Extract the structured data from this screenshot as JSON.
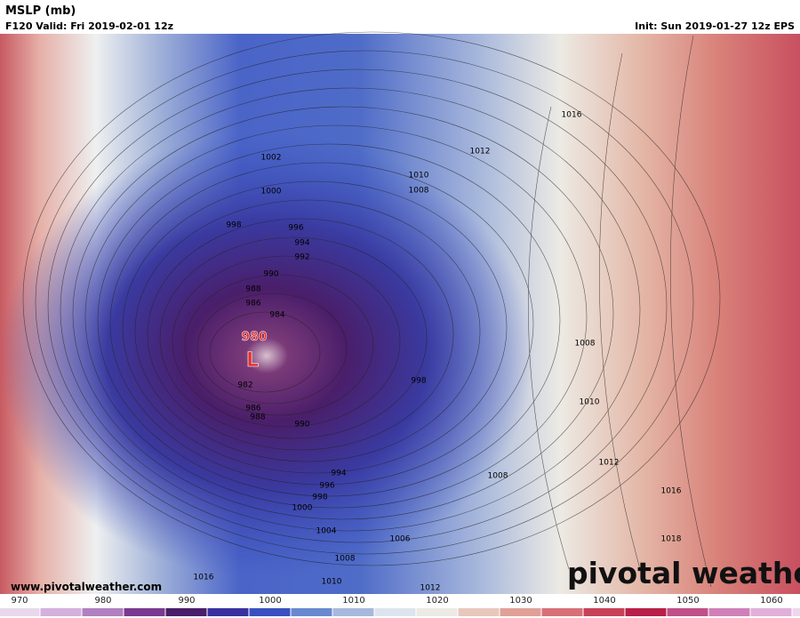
{
  "header": {
    "title": "MSLP (mb)",
    "valid": "F120 Valid: Fri 2019-02-01 12z",
    "init": "Init: Sun 2019-01-27 12z EPS"
  },
  "map": {
    "low_center": {
      "value": "980",
      "symbol": "L"
    },
    "contour_labels": [
      "1002",
      "1000",
      "998",
      "996",
      "994",
      "992",
      "990",
      "988",
      "986",
      "984",
      "982",
      "986",
      "988",
      "990",
      "994",
      "996",
      "998",
      "1000",
      "1004",
      "1006",
      "1008",
      "1010",
      "1012",
      "1016",
      "1016",
      "1012",
      "1010",
      "1008",
      "998",
      "1008",
      "1010",
      "1012",
      "1016",
      "1018",
      "1008"
    ]
  },
  "footer": {
    "url": "www.pivotalweather.com",
    "logo": "pivotal weather"
  },
  "colorbar": {
    "ticks": [
      970,
      980,
      990,
      1000,
      1010,
      1020,
      1030,
      1040,
      1050,
      1060
    ]
  }
}
